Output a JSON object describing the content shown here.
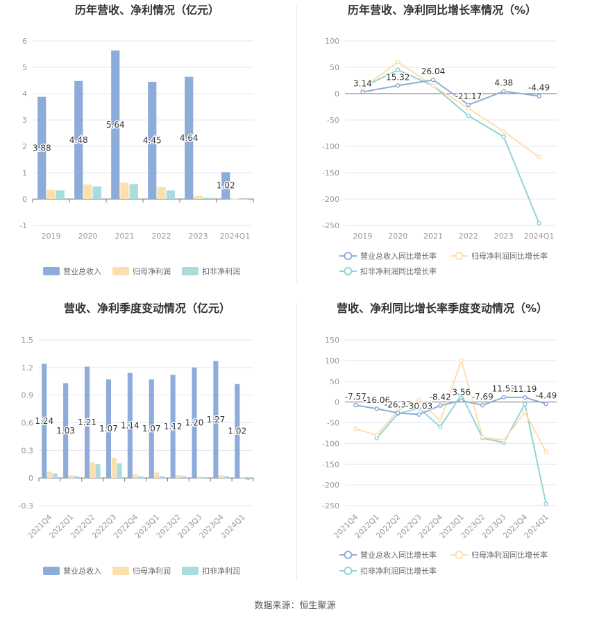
{
  "source": "数据来源：恒生聚源",
  "colors": {
    "revenue": "#8eacd9",
    "net_profit": "#fddfad",
    "deducted": "#a9dcdc",
    "rev_growth": "#8eacd9",
    "np_growth": "#fddfad",
    "ded_growth": "#8fd5d5"
  },
  "chart_data": [
    {
      "type": "bar",
      "title": "历年营收、净利情况（亿元）",
      "categories": [
        "2019",
        "2020",
        "2021",
        "2022",
        "2023",
        "2024Q1"
      ],
      "ylim": [
        -1,
        6
      ],
      "yticks": [
        "-1",
        "0",
        "1",
        "2",
        "3",
        "4",
        "5",
        "6"
      ],
      "series": [
        {
          "name": "营业总收入",
          "values": [
            3.88,
            4.48,
            5.64,
            4.45,
            4.64,
            1.02
          ],
          "labels": [
            "3.88",
            "4.48",
            "5.64",
            "4.45",
            "4.64",
            "1.02"
          ]
        },
        {
          "name": "归母净利润",
          "values": [
            0.35,
            0.55,
            0.62,
            0.46,
            0.12,
            0.01
          ]
        },
        {
          "name": "扣非净利润",
          "values": [
            0.33,
            0.48,
            0.57,
            0.33,
            0.05,
            0.0
          ]
        }
      ],
      "legend": "bottom"
    },
    {
      "type": "line",
      "title": "历年营收、净利同比增长率情况（%）",
      "categories": [
        "2019",
        "2020",
        "2021",
        "2022",
        "2023",
        "2024Q1"
      ],
      "ylim": [
        -250,
        100
      ],
      "yticks": [
        "-250",
        "-200",
        "-150",
        "-100",
        "-50",
        "0",
        "50",
        "100"
      ],
      "series": [
        {
          "name": "营业总收入同比增长率",
          "values": [
            3.14,
            15.32,
            26.04,
            -21.17,
            4.38,
            -4.49
          ],
          "labels": [
            "3.14",
            "15.32",
            "26.04",
            "-21.17",
            "4.38",
            "-4.49"
          ]
        },
        {
          "name": "归母净利润同比增长率",
          "values": [
            10,
            60,
            15,
            -28,
            -72,
            -120
          ]
        },
        {
          "name": "扣非净利润同比增长率",
          "values": [
            12,
            45,
            15,
            -42,
            -82,
            -246
          ]
        }
      ],
      "legend": "bottom"
    },
    {
      "type": "bar",
      "title": "营收、净利季度变动情况（亿元）",
      "categories": [
        "2021Q4",
        "2022Q1",
        "2022Q2",
        "2022Q3",
        "2022Q4",
        "2023Q1",
        "2023Q2",
        "2023Q3",
        "2023Q4",
        "2024Q1"
      ],
      "ylim": [
        -0.3,
        1.5
      ],
      "yticks": [
        "-0.3",
        "0",
        "0.3",
        "0.6",
        "0.9",
        "1.2",
        "1.5"
      ],
      "series": [
        {
          "name": "营业总收入",
          "values": [
            1.24,
            1.03,
            1.21,
            1.07,
            1.14,
            1.07,
            1.12,
            1.2,
            1.27,
            1.02
          ],
          "labels": [
            "1.24",
            "1.03",
            "1.21",
            "1.07",
            "1.14",
            "1.07",
            "1.12",
            "1.20",
            "1.27",
            "1.02"
          ]
        },
        {
          "name": "归母净利润",
          "values": [
            0.07,
            0.03,
            0.17,
            0.22,
            0.04,
            0.06,
            0.03,
            0.02,
            0.03,
            0.01
          ]
        },
        {
          "name": "扣非净利润",
          "values": [
            0.05,
            0.02,
            0.15,
            0.16,
            0.02,
            0.02,
            0.02,
            0.0,
            0.02,
            -0.02
          ]
        }
      ],
      "legend": "bottom"
    },
    {
      "type": "line",
      "title": "营收、净利同比增长率季度变动情况（%）",
      "categories": [
        "2021Q4",
        "2022Q1",
        "2022Q2",
        "2022Q3",
        "2022Q4",
        "2023Q1",
        "2023Q2",
        "2023Q3",
        "2023Q4",
        "2024Q1"
      ],
      "ylim": [
        -250,
        150
      ],
      "yticks": [
        "-250",
        "-200",
        "-150",
        "-100",
        "-50",
        "0",
        "50",
        "100",
        "150"
      ],
      "series": [
        {
          "name": "营业总收入同比增长率",
          "values": [
            -7.57,
            -16.06,
            -26.37,
            -30.03,
            -8.42,
            3.56,
            -7.69,
            11.53,
            11.19,
            -4.49
          ],
          "labels": [
            "-7.57",
            "-16.06",
            "-26.37",
            "-30.03",
            "-8.42",
            "3.56",
            "-7.69",
            "11.53",
            "11.19",
            "-4.49"
          ]
        },
        {
          "name": "归母净利润同比增长率",
          "values": [
            -65,
            -80,
            -20,
            5,
            -45,
            100,
            -85,
            -92,
            -25,
            -120
          ]
        },
        {
          "name": "扣非净利润同比增长率",
          "values": [
            null,
            -87,
            -28,
            -15,
            -60,
            18,
            -87,
            -98,
            -5,
            -246
          ]
        }
      ],
      "legend": "bottom"
    }
  ]
}
